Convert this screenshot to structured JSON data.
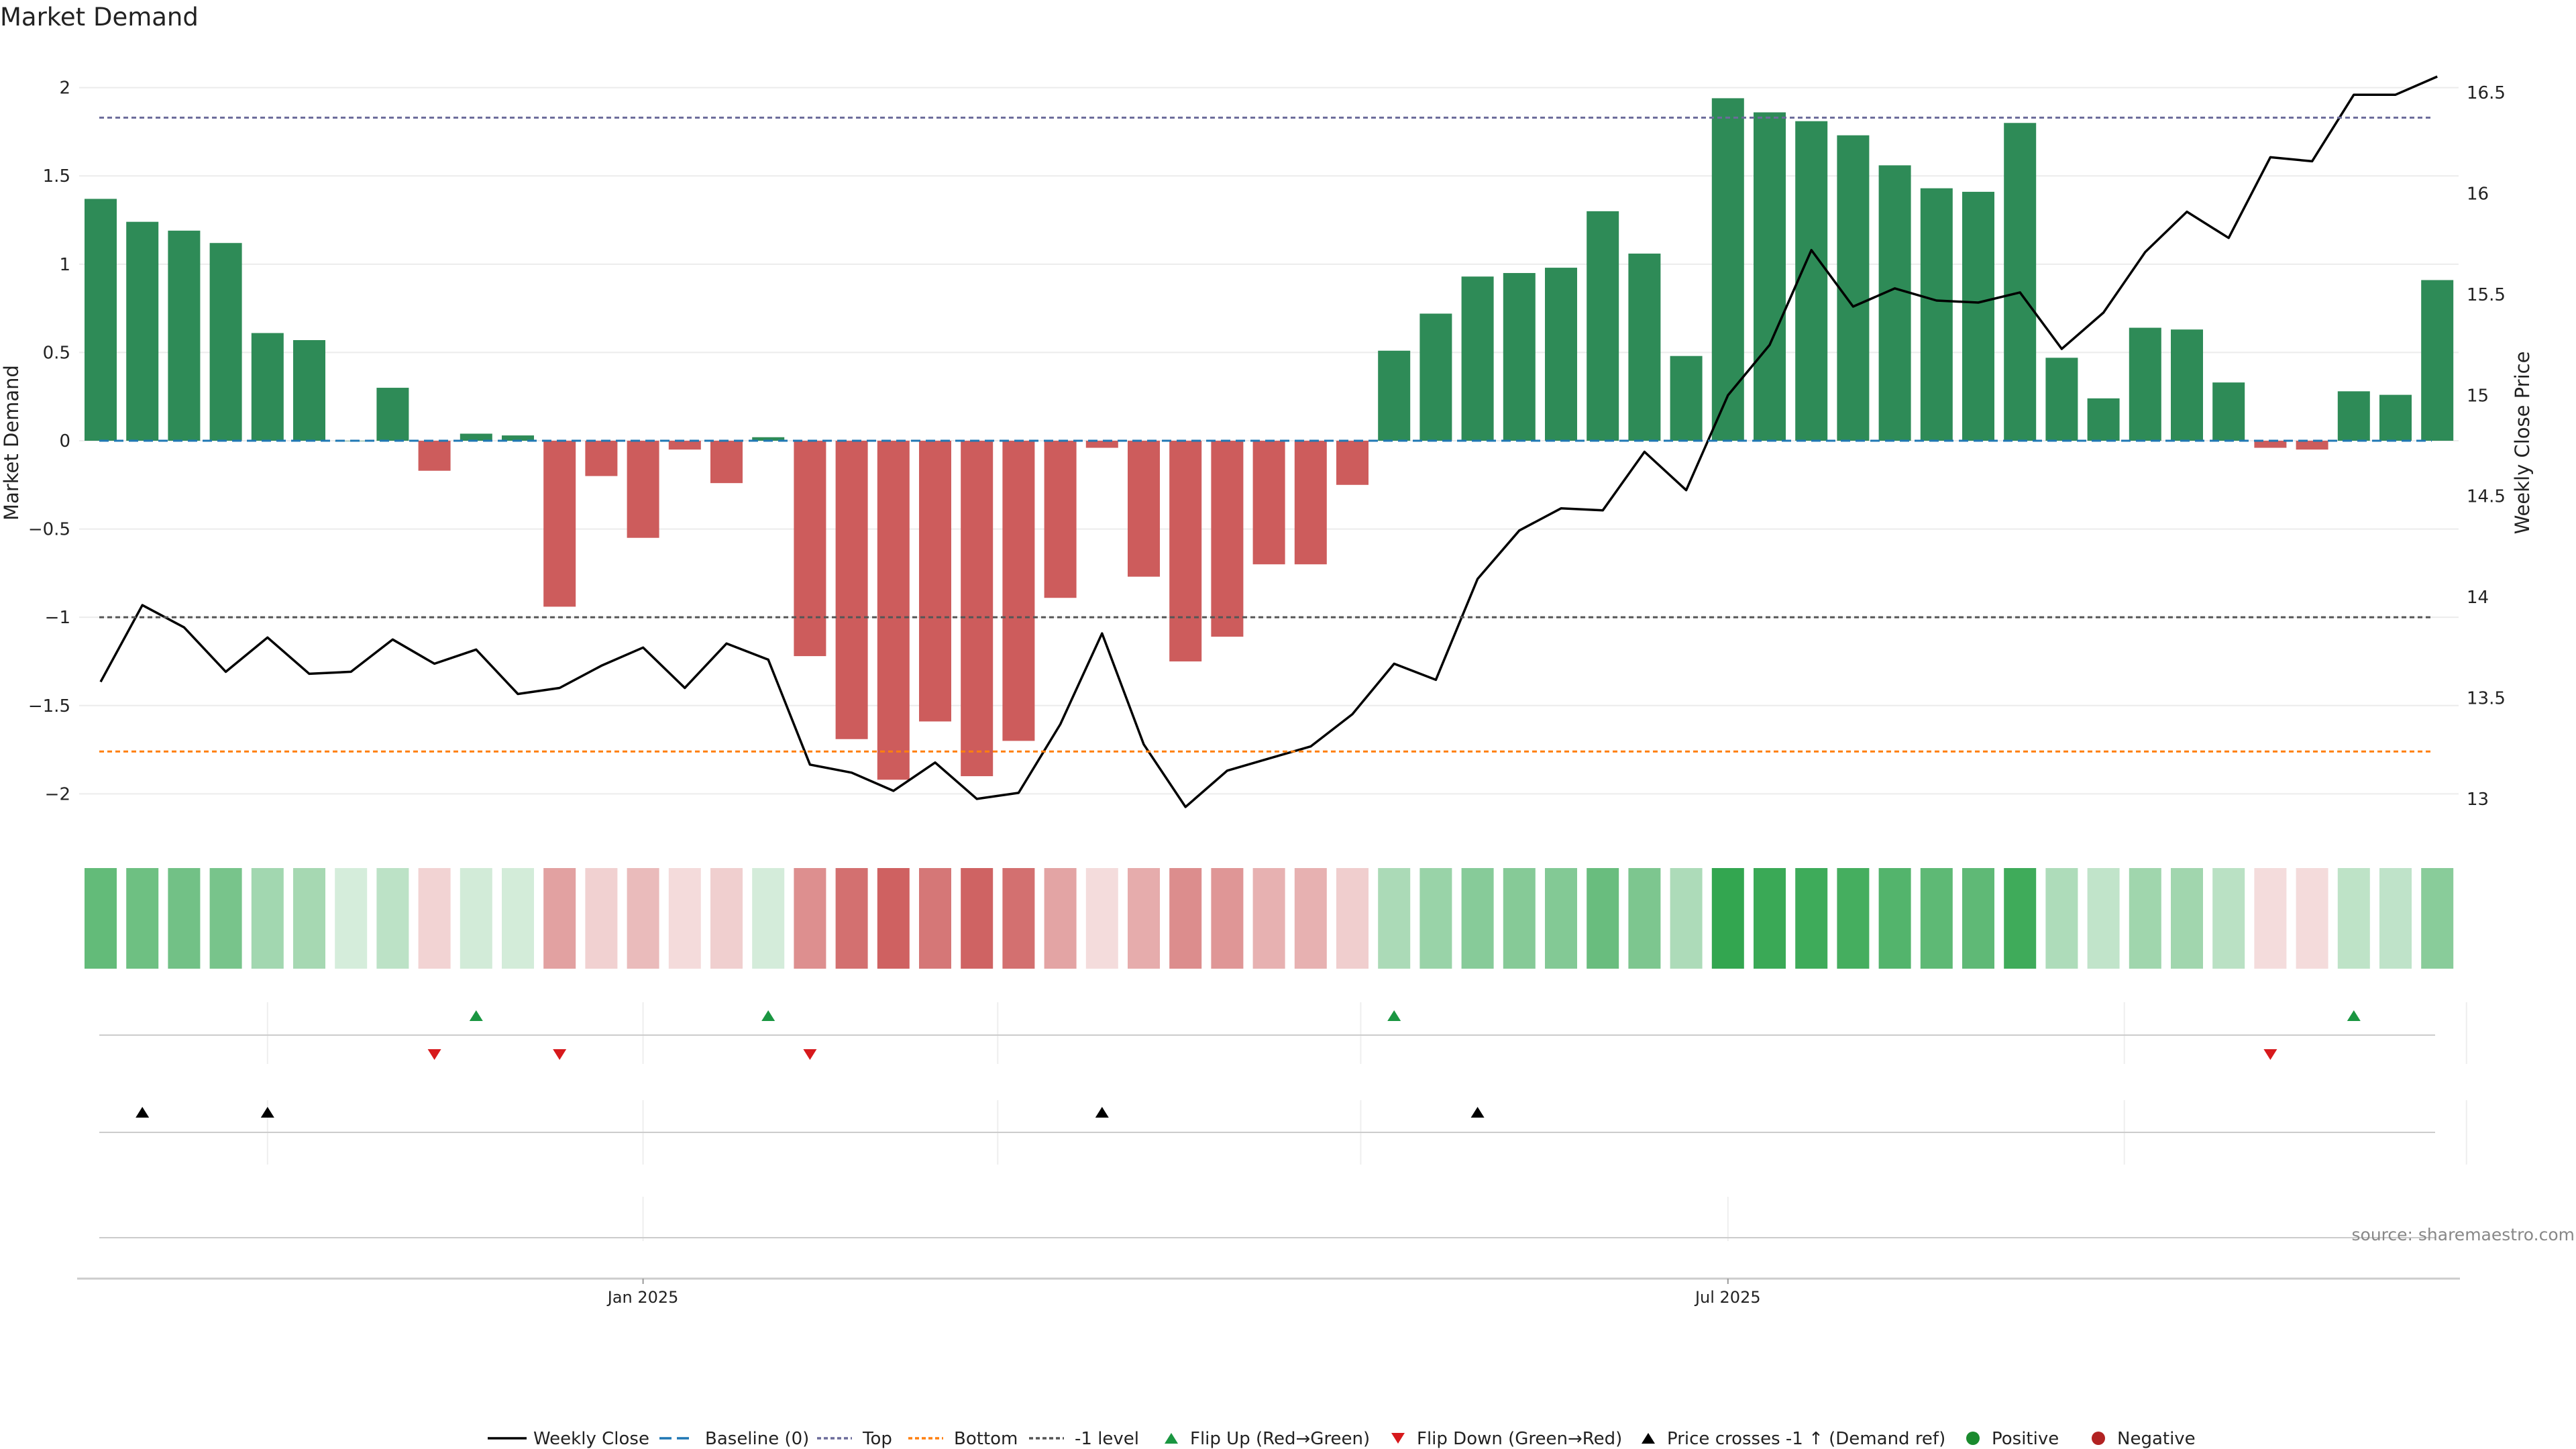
{
  "chart_data": {
    "title": "Market Demand",
    "type": "bar",
    "ylabel_left": "Market Demand",
    "ylabel_right": "Weekly Close Price",
    "ylim_left": [
      -2.2,
      2.2
    ],
    "ylim_right": [
      12.85,
      16.7
    ],
    "yticks_left": [
      {
        "v": 2,
        "label": "2"
      },
      {
        "v": 1.5,
        "label": "1.5"
      },
      {
        "v": 1,
        "label": "1"
      },
      {
        "v": 0.5,
        "label": "0.5"
      },
      {
        "v": 0,
        "label": "0"
      },
      {
        "v": -0.5,
        "label": "−0.5"
      },
      {
        "v": -1,
        "label": "−1"
      },
      {
        "v": -1.5,
        "label": "−1.5"
      },
      {
        "v": -2,
        "label": "−2"
      }
    ],
    "yticks_right": [
      {
        "v": 13,
        "label": "13"
      },
      {
        "v": 13.5,
        "label": "13.5"
      },
      {
        "v": 14,
        "label": "14"
      },
      {
        "v": 14.5,
        "label": "14.5"
      },
      {
        "v": 15,
        "label": "15"
      },
      {
        "v": 15.5,
        "label": "15.5"
      },
      {
        "v": 16,
        "label": "16"
      },
      {
        "v": 16.5,
        "label": "16.5"
      }
    ],
    "x_ticks": [
      {
        "index": 13,
        "label": "Jan 2025"
      },
      {
        "index": 39,
        "label": "Jul 2025"
      }
    ],
    "reference_lines": {
      "top": 1.83,
      "minus_one": -1.0,
      "bottom": -1.76,
      "baseline": 0
    },
    "demand": [
      1.37,
      1.24,
      1.19,
      1.12,
      0.61,
      0.57,
      0.0,
      0.3,
      -0.17,
      0.04,
      0.03,
      -0.94,
      -0.2,
      -0.55,
      -0.05,
      -0.24,
      0.02,
      -1.22,
      -1.69,
      -1.92,
      -1.59,
      -1.9,
      -1.7,
      -0.89,
      -0.04,
      -0.77,
      -1.25,
      -1.11,
      -0.7,
      -0.7,
      -0.25,
      0.51,
      0.72,
      0.93,
      0.95,
      0.98,
      1.3,
      1.06,
      0.48,
      1.94,
      1.86,
      1.81,
      1.73,
      1.56,
      1.43,
      1.41,
      1.8,
      0.47,
      0.24,
      0.64,
      0.63,
      0.33,
      -0.04,
      -0.05,
      0.28,
      0.26,
      0.91
    ],
    "weekly_close": [
      13.58,
      13.96,
      13.85,
      13.63,
      13.8,
      13.62,
      13.63,
      13.79,
      13.67,
      13.74,
      13.52,
      13.55,
      13.66,
      13.75,
      13.55,
      13.77,
      13.69,
      13.17,
      13.13,
      13.04,
      13.18,
      13.0,
      13.03,
      13.37,
      13.82,
      13.27,
      12.96,
      13.14,
      13.2,
      13.26,
      13.42,
      13.67,
      13.59,
      14.09,
      14.33,
      14.44,
      14.43,
      14.72,
      14.53,
      15.0,
      15.25,
      15.72,
      15.44,
      15.53,
      15.47,
      15.46,
      15.51,
      15.23,
      15.41,
      15.71,
      15.91,
      15.78,
      16.18,
      16.16,
      16.49,
      16.49,
      16.58
    ],
    "flip_up_indices": [
      9,
      16,
      31,
      54
    ],
    "flip_down_indices": [
      8,
      11,
      17,
      52
    ],
    "price_cross_indices": [
      1,
      4,
      24,
      33
    ]
  },
  "legend": [
    {
      "key": "weekly_close",
      "label": "Weekly Close",
      "color": "#000000"
    },
    {
      "key": "baseline",
      "label": "Baseline (0)",
      "color": "#1f77b4"
    },
    {
      "key": "top",
      "label": "Top",
      "color": "#6b6b9a"
    },
    {
      "key": "bottom",
      "label": "Bottom",
      "color": "#ff7f0e"
    },
    {
      "key": "minus_one",
      "label": "-1 level",
      "color": "#555555"
    },
    {
      "key": "flip_up",
      "label": "Flip Up (Red→Green)",
      "color": "#1a9641"
    },
    {
      "key": "flip_down",
      "label": "Flip Down (Green→Red)",
      "color": "#d7191c"
    },
    {
      "key": "price_cross",
      "label": "Price crosses -1 ↑ (Demand ref)",
      "color": "#000000"
    },
    {
      "key": "positive",
      "label": "Positive",
      "color": "#1a8a2e"
    },
    {
      "key": "negative",
      "label": "Negative",
      "color": "#b22222"
    }
  ],
  "colors": {
    "positive_bar": "#2e8b57",
    "negative_bar": "#cd5c5c",
    "line": "#000000"
  },
  "source": "source: sharemaestro.com"
}
